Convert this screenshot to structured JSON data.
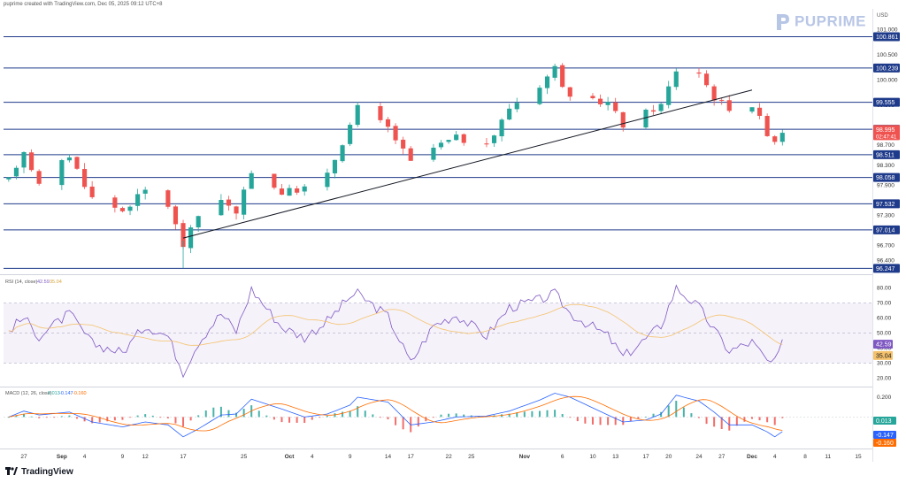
{
  "header": {
    "caption": "puprime created with TradingView.com, Dec 05, 2025 09:12 UTC+8"
  },
  "brand": {
    "logo_text": "PUPRIME"
  },
  "footer": {
    "logo_text": "TradingView"
  },
  "colors": {
    "up": "#26a69a",
    "down": "#ef5350",
    "level": "#1e3a8a",
    "trend": "#131722",
    "rsi": "#7e57c2",
    "rsi_ma": "#f5c26b",
    "macd": "#2962ff",
    "signal": "#ff6d00"
  },
  "chart_data": [
    {
      "type": "candlestick",
      "price_axis": {
        "unit": "USD",
        "range": [
          96.2,
          101.1
        ],
        "ticks": [
          "101.000",
          "100.500",
          "100.000",
          "99.500",
          "98.700",
          "98.300",
          "97.900",
          "97.300",
          "96.700",
          "96.400"
        ]
      },
      "x_axis_ticks": [
        "27",
        "Sep",
        "4",
        "9",
        "12",
        "17",
        "25",
        "Oct",
        "4",
        "9",
        "14",
        "17",
        "22",
        "25",
        "Nov",
        "6",
        "10",
        "13",
        "17",
        "20",
        "24",
        "27",
        "Dec",
        "4",
        "8",
        "11",
        "15"
      ],
      "levels": [
        {
          "label": "100.861",
          "value": 100.861
        },
        {
          "label": "100.239",
          "value": 100.239
        },
        {
          "label": "99.555",
          "value": 99.555
        },
        {
          "label": "99.018",
          "value": 99.018
        },
        {
          "label": "98.511",
          "value": 98.511
        },
        {
          "label": "98.058",
          "value": 98.058
        },
        {
          "label": "97.532",
          "value": 97.532
        },
        {
          "label": "97.014",
          "value": 97.014
        },
        {
          "label": "96.247",
          "value": 96.247
        }
      ],
      "last_price": {
        "value": "98.995",
        "countdown": "02:47:41"
      },
      "trendline": {
        "from": [
          "Sep 17",
          96.85
        ],
        "to": [
          "Dec 1",
          99.8
        ]
      },
      "anchors": [
        [
          "Aug 25",
          98.0
        ],
        [
          "Aug 27",
          98.6
        ],
        [
          "Aug 29",
          97.9
        ],
        [
          "Sep 2",
          98.5
        ],
        [
          "Sep 5",
          97.65
        ],
        [
          "Sep 9",
          97.4
        ],
        [
          "Sep 12",
          97.8
        ],
        [
          "Sep 15",
          97.5
        ],
        [
          "Sep 17",
          96.7
        ],
        [
          "Sep 19",
          97.3
        ],
        [
          "Sep 22",
          97.65
        ],
        [
          "Sep 24",
          97.3
        ],
        [
          "Sep 26",
          98.2
        ],
        [
          "Sep 30",
          97.75
        ],
        [
          "Oct 3",
          97.85
        ],
        [
          "Oct 6",
          98.1
        ],
        [
          "Oct 9",
          99.1
        ],
        [
          "Oct 10",
          99.45
        ],
        [
          "Oct 14",
          99.05
        ],
        [
          "Oct 17",
          98.35
        ],
        [
          "Oct 20",
          98.65
        ],
        [
          "Oct 23",
          98.85
        ],
        [
          "Oct 27",
          98.65
        ],
        [
          "Oct 30",
          99.45
        ],
        [
          "Nov 3",
          99.9
        ],
        [
          "Nov 5",
          100.25
        ],
        [
          "Nov 7",
          99.6
        ],
        [
          "Nov 12",
          99.55
        ],
        [
          "Nov 14",
          99.1
        ],
        [
          "Nov 17",
          99.35
        ],
        [
          "Nov 19",
          99.5
        ],
        [
          "Nov 21",
          100.2
        ],
        [
          "Nov 24",
          100.15
        ],
        [
          "Nov 26",
          99.65
        ],
        [
          "Nov 28",
          99.45
        ],
        [
          "Dec 1",
          99.5
        ],
        [
          "Dec 3",
          98.95
        ],
        [
          "Dec 4",
          98.8
        ],
        [
          "Dec 5",
          98.995
        ]
      ]
    },
    {
      "type": "line",
      "title": "RSI (14, close)",
      "legend_values": [
        "42.59",
        "35.04"
      ],
      "ylim": [
        15,
        85
      ],
      "band": [
        30,
        70
      ],
      "ticks": [
        "80.00",
        "70.00",
        "60.00",
        "50.00",
        "40.00",
        "30.00",
        "20.00"
      ],
      "last_values": [
        "42.59",
        "35.04"
      ],
      "anchors": [
        [
          "Aug 25",
          52
        ],
        [
          "Aug 27",
          60
        ],
        [
          "Aug 29",
          48
        ],
        [
          "Sep 2",
          63
        ],
        [
          "Sep 5",
          43
        ],
        [
          "Sep 9",
          37
        ],
        [
          "Sep 12",
          55
        ],
        [
          "Sep 15",
          48
        ],
        [
          "Sep 17",
          24
        ],
        [
          "Sep 19",
          44
        ],
        [
          "Sep 22",
          63
        ],
        [
          "Sep 24",
          51
        ],
        [
          "Sep 26",
          79
        ],
        [
          "Sep 30",
          54
        ],
        [
          "Oct 3",
          47
        ],
        [
          "Oct 6",
          58
        ],
        [
          "Oct 9",
          74
        ],
        [
          "Oct 10",
          76
        ],
        [
          "Oct 14",
          61
        ],
        [
          "Oct 17",
          30
        ],
        [
          "Oct 20",
          55
        ],
        [
          "Oct 23",
          62
        ],
        [
          "Oct 27",
          48
        ],
        [
          "Oct 30",
          67
        ],
        [
          "Nov 3",
          72
        ],
        [
          "Nov 5",
          76
        ],
        [
          "Nov 7",
          63
        ],
        [
          "Nov 12",
          48
        ],
        [
          "Nov 14",
          34
        ],
        [
          "Nov 17",
          46
        ],
        [
          "Nov 19",
          55
        ],
        [
          "Nov 21",
          80
        ],
        [
          "Nov 24",
          67
        ],
        [
          "Nov 26",
          52
        ],
        [
          "Nov 28",
          38
        ],
        [
          "Dec 1",
          44
        ],
        [
          "Dec 3",
          31
        ],
        [
          "Dec 4",
          30
        ],
        [
          "Dec 5",
          42.59
        ]
      ]
    },
    {
      "type": "line",
      "title": "MACD (12, 26, close)",
      "legend_values": [
        "0.013",
        "-0.147",
        "-0.160"
      ],
      "ylim": [
        -0.3,
        0.28
      ],
      "ticks": [
        "0.200"
      ],
      "last_values": [
        "0.013",
        "-0.147",
        "-0.160"
      ],
      "macd_anchors": [
        [
          "Aug 25",
          0.0
        ],
        [
          "Aug 27",
          0.06
        ],
        [
          "Aug 29",
          0.02
        ],
        [
          "Sep 2",
          0.05
        ],
        [
          "Sep 5",
          -0.05
        ],
        [
          "Sep 9",
          -0.1
        ],
        [
          "Sep 12",
          -0.05
        ],
        [
          "Sep 15",
          -0.08
        ],
        [
          "Sep 17",
          -0.2
        ],
        [
          "Sep 19",
          -0.12
        ],
        [
          "Sep 22",
          0.02
        ],
        [
          "Sep 24",
          0.03
        ],
        [
          "Sep 26",
          0.18
        ],
        [
          "Sep 30",
          0.08
        ],
        [
          "Oct 3",
          0.0
        ],
        [
          "Oct 6",
          0.03
        ],
        [
          "Oct 9",
          0.12
        ],
        [
          "Oct 10",
          0.2
        ],
        [
          "Oct 14",
          0.15
        ],
        [
          "Oct 17",
          -0.08
        ],
        [
          "Oct 20",
          -0.05
        ],
        [
          "Oct 23",
          0.0
        ],
        [
          "Oct 27",
          0.01
        ],
        [
          "Oct 30",
          0.06
        ],
        [
          "Nov 3",
          0.17
        ],
        [
          "Nov 5",
          0.24
        ],
        [
          "Nov 7",
          0.2
        ],
        [
          "Nov 12",
          0.02
        ],
        [
          "Nov 14",
          -0.05
        ],
        [
          "Nov 17",
          -0.03
        ],
        [
          "Nov 19",
          0.03
        ],
        [
          "Nov 21",
          0.22
        ],
        [
          "Nov 24",
          0.16
        ],
        [
          "Nov 26",
          0.05
        ],
        [
          "Nov 28",
          -0.08
        ],
        [
          "Dec 1",
          -0.08
        ],
        [
          "Dec 3",
          -0.15
        ],
        [
          "Dec 4",
          -0.2
        ],
        [
          "Dec 5",
          -0.147
        ]
      ]
    }
  ]
}
